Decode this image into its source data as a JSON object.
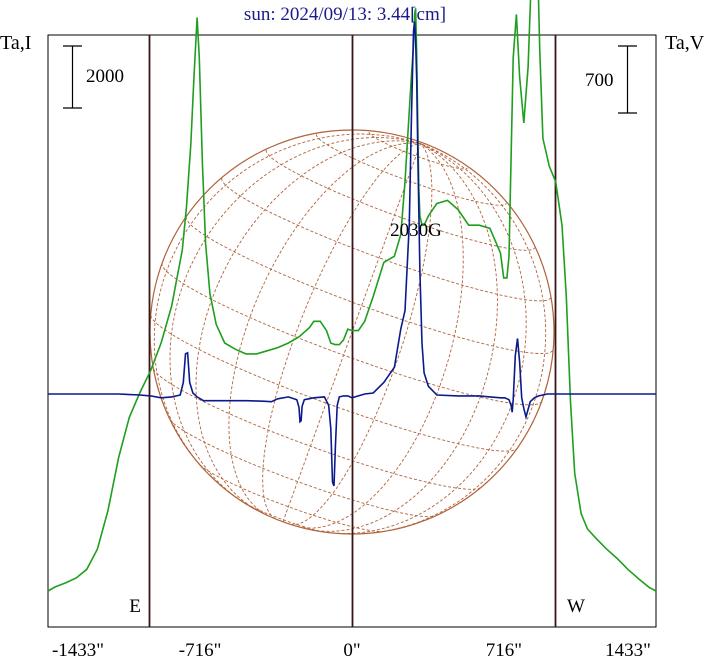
{
  "chart_data": {
    "type": "line",
    "title": "sun: 2024/09/13: 3.44[cm]",
    "left_axis_label": "Ta,I",
    "right_axis_label": "Ta,V",
    "scale_bar_left": {
      "label": "2000"
    },
    "scale_bar_right": {
      "label": "700"
    },
    "x_ticks": [
      "-1433\"",
      "-716\"",
      "0\"",
      "716\"",
      "1433\""
    ],
    "x_tick_values": [
      -1433,
      -716,
      0,
      716,
      1433
    ],
    "xlim": [
      -1433,
      1433
    ],
    "limb_labels": {
      "east": "E",
      "west": "W"
    },
    "limb_positions": [
      -955,
      0,
      955
    ],
    "annotation": {
      "text": "2030G",
      "x": 300
    },
    "colors": {
      "stokes_I": "#1f9e1f",
      "stokes_V": "#0a1a8c",
      "sun_disk": "#b0633a",
      "limb_lines": "#3a1515",
      "title": "#1a1a8c"
    },
    "series": [
      {
        "key": "I",
        "y_axis": "left",
        "x": [
          -1433,
          -1400,
          -1350,
          -1300,
          -1250,
          -1200,
          -1150,
          -1100,
          -1050,
          -1000,
          -950,
          -900,
          -850,
          -800,
          -780,
          -760,
          -745,
          -730,
          -720,
          -705,
          -690,
          -670,
          -640,
          -600,
          -550,
          -500,
          -450,
          -400,
          -350,
          -300,
          -250,
          -200,
          -180,
          -150,
          -120,
          -100,
          -80,
          -60,
          -40,
          -20,
          0,
          30,
          60,
          100,
          150,
          200,
          230,
          250,
          270,
          280,
          290,
          295,
          300,
          305,
          310,
          315,
          320,
          330,
          340,
          360,
          380,
          400,
          450,
          500,
          550,
          600,
          650,
          700,
          715,
          730,
          740,
          750,
          760,
          775,
          790,
          810,
          830,
          850,
          865,
          875,
          885,
          900,
          930,
          960,
          990,
          1010,
          1030,
          1050,
          1080,
          1110,
          1150,
          1200,
          1250,
          1300,
          1350,
          1400,
          1433
        ],
        "values": [
          0.0,
          130,
          260,
          420,
          700,
          1350,
          2600,
          4300,
          5600,
          6400,
          7100,
          8000,
          9200,
          11000,
          12400,
          14400,
          16600,
          18500,
          17200,
          13800,
          11200,
          9600,
          8600,
          8000,
          7800,
          7650,
          7650,
          7750,
          7850,
          8000,
          8200,
          8500,
          8700,
          8700,
          8400,
          8000,
          7950,
          7950,
          8100,
          8450,
          8400,
          8400,
          8700,
          9500,
          10600,
          10800,
          11500,
          13200,
          15500,
          16600,
          17600,
          18600,
          18800,
          17300,
          15000,
          13000,
          12100,
          11800,
          11800,
          12100,
          12300,
          12500,
          12600,
          12300,
          11800,
          11800,
          11700,
          10900,
          10100,
          10100,
          10800,
          14000,
          17200,
          18600,
          16600,
          15100,
          16900,
          20700,
          21800,
          20300,
          17500,
          14600,
          13700,
          13200,
          11800,
          9500,
          6100,
          3800,
          2500,
          2000,
          1700,
          1350,
          1050,
          700,
          400,
          120,
          0.0
        ]
      },
      {
        "key": "V",
        "y_axis": "right",
        "x": [
          -1433,
          -1300,
          -1100,
          -1000,
          -950,
          -900,
          -850,
          -810,
          -795,
          -785,
          -775,
          -765,
          -750,
          -730,
          -700,
          -600,
          -500,
          -420,
          -380,
          -350,
          -300,
          -260,
          -250,
          -245,
          -240,
          -235,
          -225,
          -180,
          -130,
          -110,
          -100,
          -92,
          -85,
          -78,
          -70,
          -60,
          -40,
          -20,
          0,
          30,
          60,
          100,
          150,
          200,
          230,
          250,
          270,
          280,
          290,
          295,
          300,
          305,
          310,
          320,
          330,
          340,
          360,
          400,
          500,
          600,
          650,
          700,
          720,
          740,
          750,
          755,
          760,
          770,
          780,
          790,
          800,
          810,
          820,
          840,
          860,
          880,
          900,
          920,
          1000,
          1100,
          1200,
          1300,
          1433
        ],
        "values": [
          0,
          0,
          0,
          -10,
          -20,
          -40,
          -30,
          -10,
          120,
          420,
          430,
          120,
          10,
          -30,
          -70,
          -70,
          -70,
          -75,
          -80,
          -50,
          -30,
          -60,
          -140,
          -290,
          -280,
          -130,
          -60,
          -40,
          -30,
          -120,
          -360,
          -920,
          -960,
          -520,
          -120,
          -30,
          -20,
          -20,
          -40,
          -20,
          0,
          10,
          120,
          280,
          680,
          870,
          1780,
          2870,
          3790,
          3890,
          3700,
          3290,
          2520,
          1280,
          530,
          220,
          80,
          -10,
          -20,
          -20,
          -30,
          -40,
          -40,
          -60,
          -120,
          -190,
          -60,
          400,
          580,
          340,
          -40,
          -150,
          -240,
          -80,
          -40,
          -20,
          -10,
          0,
          0,
          0,
          0,
          0,
          0
        ]
      }
    ]
  }
}
